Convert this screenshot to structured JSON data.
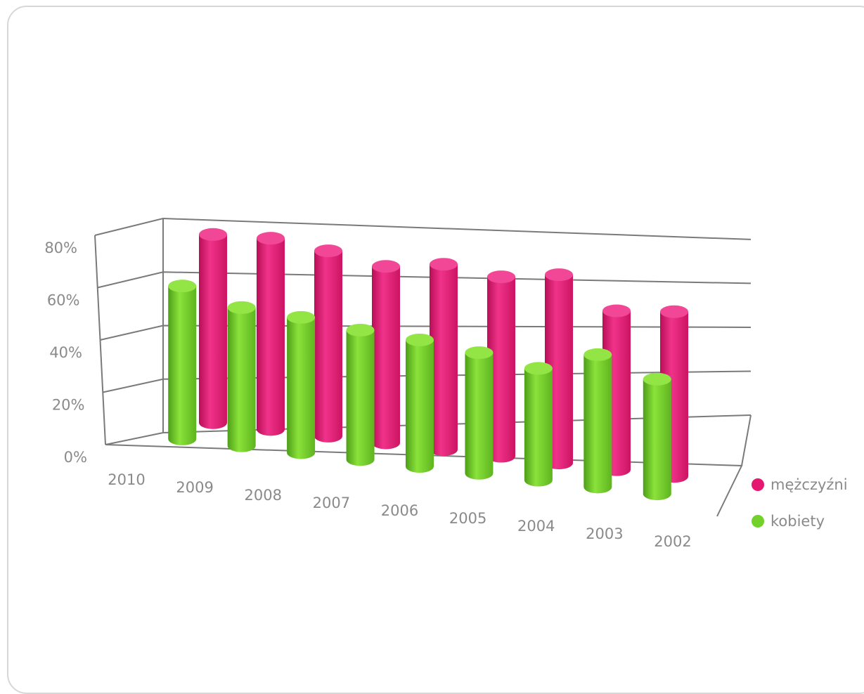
{
  "chart_data": {
    "type": "bar",
    "style": "3d-cylinder",
    "title": "",
    "xlabel": "",
    "ylabel": "",
    "categories": [
      "2010",
      "2009",
      "2008",
      "2007",
      "2006",
      "2005",
      "2004",
      "2003",
      "2002"
    ],
    "series": [
      {
        "name": "mężczyźni",
        "color": "#e5176e",
        "values": [
          64,
          65,
          63,
          60,
          63,
          61,
          64,
          54,
          56
        ]
      },
      {
        "name": "kobiety",
        "color": "#72d12a",
        "values": [
          52,
          47,
          46,
          44,
          43,
          41,
          38,
          45,
          39
        ]
      }
    ],
    "yticks": [
      "0%",
      "20%",
      "40%",
      "60%",
      "80%"
    ],
    "ylim": [
      0,
      80
    ],
    "grid": true,
    "legend": "right"
  }
}
